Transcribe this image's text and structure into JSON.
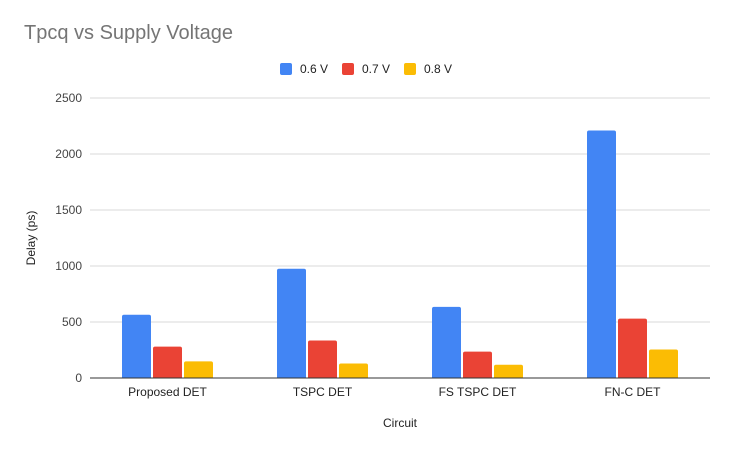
{
  "chart_data": {
    "type": "bar",
    "title": "Tpcq vs Supply Voltage",
    "xlabel": "Circuit",
    "ylabel": "Delay (ps)",
    "ylim": [
      0,
      2500
    ],
    "yticks": [
      0,
      500,
      1000,
      1500,
      2000,
      2500
    ],
    "grid": true,
    "legend_position": "top",
    "categories": [
      "Proposed DET",
      "TSPC DET",
      "FS TSPC DET",
      "FN-C DET"
    ],
    "series": [
      {
        "name": "0.6 V",
        "color": "#4285f4",
        "values": [
          565,
          975,
          635,
          2210
        ]
      },
      {
        "name": "0.7 V",
        "color": "#ea4335",
        "values": [
          280,
          335,
          235,
          530
        ]
      },
      {
        "name": "0.8 V",
        "color": "#fbbc04",
        "values": [
          148,
          130,
          118,
          255
        ]
      }
    ]
  }
}
